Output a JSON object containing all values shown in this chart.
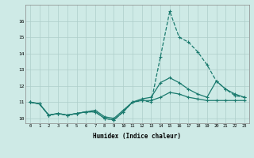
{
  "xlabel": "Humidex (Indice chaleur)",
  "background_color": "#ceeae6",
  "grid_color": "#aececa",
  "line_color": "#1a7a6e",
  "hours": [
    0,
    1,
    2,
    3,
    4,
    5,
    6,
    7,
    8,
    9,
    10,
    11,
    12,
    13,
    14,
    15,
    16,
    17,
    18,
    19,
    20,
    21,
    22,
    23
  ],
  "line_max": [
    11.0,
    10.9,
    10.2,
    10.3,
    10.2,
    10.3,
    10.4,
    10.4,
    10.0,
    9.9,
    10.4,
    11.0,
    11.1,
    11.0,
    13.8,
    16.6,
    15.0,
    14.7,
    14.1,
    13.3,
    12.3,
    11.8,
    11.4,
    11.3
  ],
  "line_mid": [
    11.0,
    10.9,
    10.2,
    10.3,
    10.2,
    10.3,
    10.4,
    10.4,
    10.0,
    9.9,
    10.4,
    11.0,
    11.2,
    11.3,
    12.2,
    12.5,
    12.2,
    11.8,
    11.5,
    11.3,
    12.3,
    11.8,
    11.5,
    11.3
  ],
  "line_min": [
    11.0,
    10.9,
    10.2,
    10.3,
    10.2,
    10.3,
    10.4,
    10.5,
    10.1,
    10.0,
    10.5,
    11.0,
    11.1,
    11.1,
    11.3,
    11.6,
    11.5,
    11.3,
    11.2,
    11.1,
    11.1,
    11.1,
    11.1,
    11.1
  ],
  "ylim": [
    9.7,
    17.0
  ],
  "yticks": [
    10,
    11,
    12,
    13,
    14,
    15,
    16
  ],
  "xlim": [
    -0.5,
    23.5
  ],
  "xticks": [
    0,
    1,
    2,
    3,
    4,
    5,
    6,
    7,
    8,
    9,
    10,
    11,
    12,
    13,
    14,
    15,
    16,
    17,
    18,
    19,
    20,
    21,
    22,
    23
  ]
}
